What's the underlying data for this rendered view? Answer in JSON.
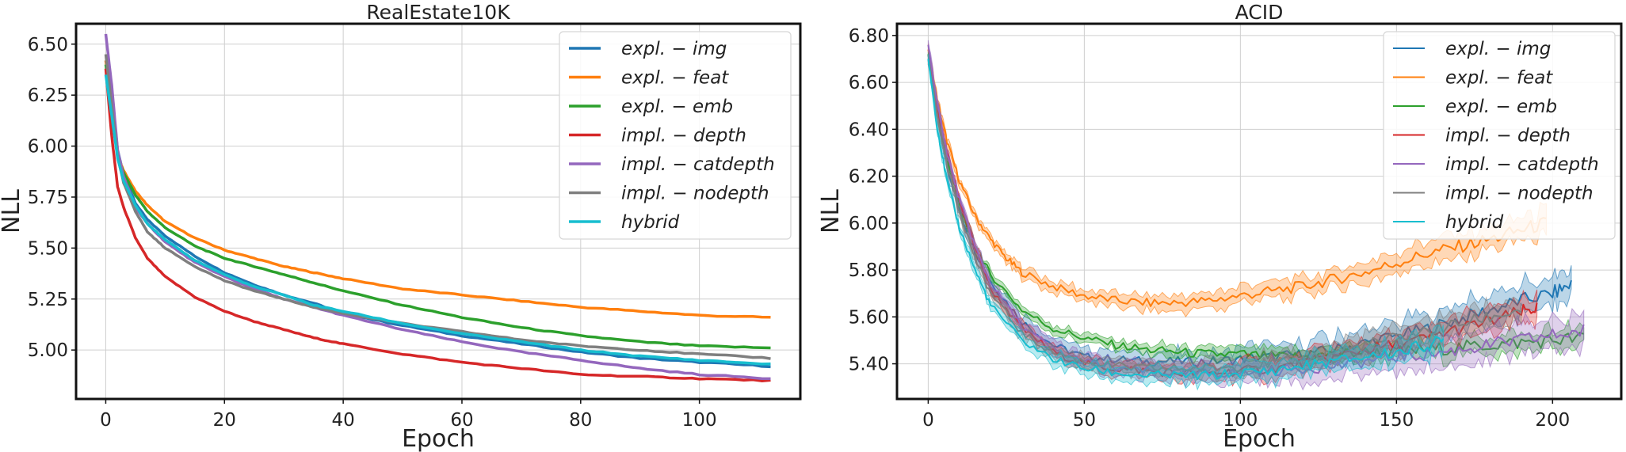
{
  "chart_data": [
    {
      "type": "line",
      "title": "RealEstate10K",
      "xlabel": "Epoch",
      "ylabel": "NLL",
      "xlim": [
        -5,
        117
      ],
      "ylim": [
        4.76,
        6.6
      ],
      "xticks": [
        0,
        20,
        40,
        60,
        80,
        100
      ],
      "yticks": [
        5.0,
        5.25,
        5.5,
        5.75,
        6.0,
        6.25,
        6.5
      ],
      "ytick_labels": [
        "5.00",
        "5.25",
        "5.50",
        "5.75",
        "6.00",
        "6.25",
        "6.50"
      ],
      "grid": true,
      "legend_position": "top-right",
      "series": [
        {
          "name": "expl. − img",
          "color": "#1f77b4",
          "x": [
            0,
            1,
            2,
            3,
            5,
            7,
            10,
            15,
            20,
            25,
            30,
            35,
            40,
            50,
            60,
            70,
            80,
            90,
            100,
            112
          ],
          "y": [
            6.42,
            6.25,
            5.98,
            5.86,
            5.72,
            5.64,
            5.56,
            5.46,
            5.38,
            5.32,
            5.27,
            5.23,
            5.18,
            5.12,
            5.07,
            5.03,
            4.99,
            4.96,
            4.94,
            4.92
          ]
        },
        {
          "name": "expl. − feat",
          "color": "#ff7f0e",
          "x": [
            0,
            1,
            2,
            3,
            5,
            7,
            10,
            15,
            20,
            25,
            30,
            35,
            40,
            50,
            60,
            70,
            80,
            90,
            100,
            112
          ],
          "y": [
            6.42,
            6.22,
            5.95,
            5.88,
            5.78,
            5.71,
            5.63,
            5.55,
            5.49,
            5.45,
            5.41,
            5.38,
            5.35,
            5.3,
            5.27,
            5.24,
            5.21,
            5.19,
            5.17,
            5.16
          ]
        },
        {
          "name": "expl. − emb",
          "color": "#2ca02c",
          "x": [
            0,
            1,
            2,
            3,
            5,
            7,
            10,
            15,
            20,
            25,
            30,
            35,
            40,
            50,
            60,
            70,
            80,
            90,
            100,
            112
          ],
          "y": [
            6.4,
            6.2,
            5.95,
            5.87,
            5.76,
            5.68,
            5.6,
            5.51,
            5.45,
            5.41,
            5.37,
            5.33,
            5.29,
            5.22,
            5.16,
            5.11,
            5.07,
            5.04,
            5.02,
            5.01
          ]
        },
        {
          "name": "impl. − depth",
          "color": "#d62728",
          "x": [
            0,
            1,
            2,
            3,
            5,
            7,
            10,
            15,
            20,
            25,
            30,
            35,
            40,
            50,
            60,
            70,
            80,
            90,
            100,
            112
          ],
          "y": [
            6.38,
            6.05,
            5.8,
            5.7,
            5.55,
            5.45,
            5.36,
            5.26,
            5.19,
            5.14,
            5.1,
            5.06,
            5.03,
            4.98,
            4.94,
            4.91,
            4.88,
            4.87,
            4.86,
            4.85
          ]
        },
        {
          "name": "impl. − catdepth",
          "color": "#9467bd",
          "x": [
            0,
            1,
            2,
            3,
            5,
            7,
            10,
            15,
            20,
            25,
            30,
            35,
            40,
            50,
            60,
            70,
            80,
            90,
            100,
            112
          ],
          "y": [
            6.55,
            6.3,
            5.98,
            5.85,
            5.7,
            5.62,
            5.53,
            5.43,
            5.36,
            5.3,
            5.25,
            5.21,
            5.17,
            5.1,
            5.04,
            4.99,
            4.95,
            4.91,
            4.88,
            4.86
          ]
        },
        {
          "name": "impl. − nodepth",
          "color": "#7f7f7f",
          "x": [
            0,
            1,
            2,
            3,
            5,
            7,
            10,
            15,
            20,
            25,
            30,
            35,
            40,
            50,
            60,
            70,
            80,
            90,
            100,
            112
          ],
          "y": [
            6.45,
            6.2,
            5.95,
            5.82,
            5.68,
            5.58,
            5.5,
            5.41,
            5.34,
            5.29,
            5.25,
            5.21,
            5.18,
            5.13,
            5.09,
            5.05,
            5.02,
            5.0,
            4.98,
            4.96
          ]
        },
        {
          "name": "hybrid",
          "color": "#17becf",
          "x": [
            0,
            1,
            2,
            3,
            5,
            7,
            10,
            15,
            20,
            25,
            30,
            35,
            40,
            50,
            60,
            70,
            80,
            90,
            100,
            112
          ],
          "y": [
            6.35,
            6.15,
            5.94,
            5.83,
            5.71,
            5.62,
            5.54,
            5.44,
            5.37,
            5.31,
            5.27,
            5.22,
            5.19,
            5.13,
            5.08,
            5.04,
            5.0,
            4.97,
            4.95,
            4.93
          ]
        }
      ]
    },
    {
      "type": "line",
      "title": "ACID",
      "xlabel": "Epoch",
      "ylabel": "NLL",
      "xlim": [
        -10,
        222
      ],
      "ylim": [
        5.25,
        6.85
      ],
      "xticks": [
        0,
        50,
        100,
        150,
        200
      ],
      "yticks": [
        5.4,
        5.6,
        5.8,
        6.0,
        6.2,
        6.4,
        6.6,
        6.8
      ],
      "ytick_labels": [
        "5.40",
        "5.60",
        "5.80",
        "6.00",
        "6.20",
        "6.40",
        "6.60",
        "6.80"
      ],
      "grid": true,
      "legend_position": "top-right",
      "series": [
        {
          "name": "expl. − img",
          "color": "#1f77b4",
          "band": 0.05,
          "x": [
            0,
            3,
            6,
            10,
            15,
            20,
            30,
            40,
            50,
            60,
            70,
            80,
            90,
            100,
            110,
            120,
            130,
            140,
            150,
            160,
            170,
            180,
            190,
            200,
            206
          ],
          "y": [
            6.72,
            6.45,
            6.25,
            6.05,
            5.88,
            5.75,
            5.58,
            5.48,
            5.43,
            5.42,
            5.41,
            5.41,
            5.41,
            5.42,
            5.43,
            5.44,
            5.46,
            5.49,
            5.52,
            5.55,
            5.59,
            5.63,
            5.67,
            5.7,
            5.74
          ]
        },
        {
          "name": "expl. − feat",
          "color": "#ff7f0e",
          "band": 0.04,
          "x": [
            0,
            3,
            6,
            10,
            15,
            20,
            25,
            30,
            40,
            50,
            60,
            70,
            80,
            90,
            100,
            110,
            120,
            130,
            140,
            150,
            160,
            170,
            180,
            190,
            198
          ],
          "y": [
            6.74,
            6.52,
            6.35,
            6.18,
            6.03,
            5.93,
            5.85,
            5.79,
            5.73,
            5.69,
            5.67,
            5.66,
            5.66,
            5.67,
            5.69,
            5.71,
            5.73,
            5.76,
            5.79,
            5.83,
            5.87,
            5.9,
            5.93,
            5.97,
            6.0
          ]
        },
        {
          "name": "expl. − emb",
          "color": "#2ca02c",
          "band": 0.03,
          "x": [
            0,
            3,
            6,
            10,
            15,
            20,
            30,
            40,
            50,
            60,
            70,
            80,
            90,
            100,
            110,
            120,
            130,
            140,
            150,
            160,
            170,
            180,
            190,
            200,
            210
          ],
          "y": [
            6.72,
            6.47,
            6.28,
            6.08,
            5.9,
            5.78,
            5.63,
            5.55,
            5.51,
            5.48,
            5.46,
            5.45,
            5.44,
            5.44,
            5.43,
            5.43,
            5.44,
            5.45,
            5.45,
            5.46,
            5.47,
            5.48,
            5.49,
            5.5,
            5.51
          ]
        },
        {
          "name": "impl. − depth",
          "color": "#d62728",
          "band": 0.04,
          "x": [
            0,
            3,
            6,
            10,
            15,
            20,
            30,
            40,
            50,
            60,
            70,
            80,
            90,
            100,
            110,
            120,
            130,
            140,
            150,
            160,
            170,
            180,
            190,
            195
          ],
          "y": [
            6.7,
            6.48,
            6.3,
            6.1,
            5.9,
            5.72,
            5.55,
            5.45,
            5.4,
            5.38,
            5.37,
            5.36,
            5.36,
            5.37,
            5.38,
            5.4,
            5.43,
            5.46,
            5.48,
            5.51,
            5.55,
            5.58,
            5.62,
            5.64
          ]
        },
        {
          "name": "impl. − catdepth",
          "color": "#9467bd",
          "band": 0.05,
          "x": [
            0,
            3,
            6,
            10,
            15,
            20,
            30,
            40,
            50,
            60,
            70,
            80,
            90,
            100,
            110,
            120,
            130,
            140,
            150,
            160,
            170,
            180,
            190,
            200,
            210
          ],
          "y": [
            6.76,
            6.5,
            6.3,
            6.1,
            5.9,
            5.74,
            5.56,
            5.46,
            5.41,
            5.38,
            5.37,
            5.36,
            5.36,
            5.36,
            5.37,
            5.38,
            5.39,
            5.41,
            5.43,
            5.44,
            5.46,
            5.48,
            5.5,
            5.52,
            5.54
          ]
        },
        {
          "name": "impl. − nodepth",
          "color": "#7f7f7f",
          "band": 0.04,
          "x": [
            0,
            3,
            6,
            10,
            15,
            20,
            30,
            40,
            50,
            60,
            70,
            80,
            90,
            100,
            110,
            120,
            130,
            140,
            150,
            160,
            170,
            180,
            190
          ],
          "y": [
            6.7,
            6.45,
            6.25,
            6.05,
            5.85,
            5.7,
            5.53,
            5.45,
            5.41,
            5.39,
            5.38,
            5.38,
            5.38,
            5.39,
            5.4,
            5.42,
            5.45,
            5.48,
            5.51,
            5.54,
            5.57,
            5.6,
            5.63
          ]
        },
        {
          "name": "hybrid",
          "color": "#17becf",
          "band": 0.04,
          "x": [
            0,
            3,
            6,
            10,
            15,
            20,
            30,
            40,
            50,
            60,
            70,
            80,
            90,
            100,
            110,
            120,
            130,
            140,
            150,
            160,
            165
          ],
          "y": [
            6.7,
            6.4,
            6.18,
            5.98,
            5.8,
            5.65,
            5.5,
            5.42,
            5.38,
            5.36,
            5.35,
            5.35,
            5.35,
            5.36,
            5.37,
            5.39,
            5.41,
            5.43,
            5.45,
            5.48,
            5.5
          ]
        }
      ]
    }
  ]
}
